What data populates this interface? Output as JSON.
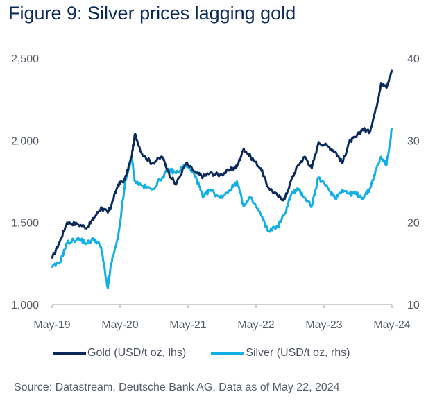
{
  "title": "Figure 9: Silver prices lagging gold",
  "source": "Source: Datastream, Deutsche Bank AG, Data as of May 22, 2024",
  "colors": {
    "gold": "#0b2a5b",
    "silver": "#12aee6",
    "axis": "#9aa0a8"
  },
  "chart_data": {
    "type": "line",
    "title": "Figure 9: Silver prices lagging gold",
    "x_tick_labels": [
      "May-19",
      "May-20",
      "May-21",
      "May-22",
      "May-23",
      "May-24"
    ],
    "y_left": {
      "ticks": [
        "1,000",
        "1,500",
        "2,000",
        "2,500"
      ],
      "ylim": [
        1000,
        2500
      ]
    },
    "y_right": {
      "ticks": [
        "10",
        "20",
        "30",
        "40"
      ],
      "ylim": [
        10,
        40
      ]
    },
    "x": [
      2019.38,
      2019.5,
      2019.6,
      2019.75,
      2019.9,
      2020.0,
      2020.1,
      2020.2,
      2020.25,
      2020.35,
      2020.45,
      2020.55,
      2020.6,
      2020.7,
      2020.85,
      2021.0,
      2021.1,
      2021.2,
      2021.35,
      2021.5,
      2021.6,
      2021.7,
      2021.85,
      2022.0,
      2022.1,
      2022.2,
      2022.3,
      2022.45,
      2022.55,
      2022.7,
      2022.8,
      2022.9,
      2023.0,
      2023.1,
      2023.2,
      2023.3,
      2023.45,
      2023.55,
      2023.65,
      2023.75,
      2023.85,
      2023.95,
      2024.05,
      2024.15,
      2024.22,
      2024.3,
      2024.38
    ],
    "series": [
      {
        "name": "Gold (USD/t oz, lhs)",
        "axis": "left",
        "values": [
          1280,
          1390,
          1500,
          1490,
          1470,
          1530,
          1590,
          1560,
          1600,
          1730,
          1760,
          1900,
          2040,
          1920,
          1860,
          1900,
          1800,
          1730,
          1860,
          1800,
          1780,
          1800,
          1790,
          1820,
          1840,
          1950,
          1900,
          1830,
          1720,
          1660,
          1640,
          1760,
          1850,
          1900,
          1830,
          1990,
          1960,
          1930,
          1860,
          1990,
          2020,
          2070,
          2050,
          2200,
          2350,
          2320,
          2430
        ]
      },
      {
        "name": "Silver (USD/t oz, rhs)",
        "axis": "right",
        "values": [
          14.5,
          15.2,
          17.5,
          18.0,
          17.5,
          18.0,
          17.0,
          12.0,
          15.0,
          18.0,
          24.5,
          28.0,
          25.0,
          24.5,
          24.0,
          25.5,
          26.5,
          26.0,
          27.0,
          25.5,
          23.0,
          24.0,
          23.0,
          24.0,
          25.0,
          22.0,
          23.0,
          21.0,
          19.0,
          19.5,
          21.0,
          23.5,
          24.0,
          23.0,
          22.0,
          25.5,
          24.0,
          23.0,
          24.0,
          23.5,
          23.5,
          23.0,
          24.0,
          26.5,
          28.0,
          27.0,
          31.5
        ]
      }
    ],
    "legend": [
      "Gold (USD/t oz, lhs)",
      "Silver (USD/t oz, rhs)"
    ]
  }
}
